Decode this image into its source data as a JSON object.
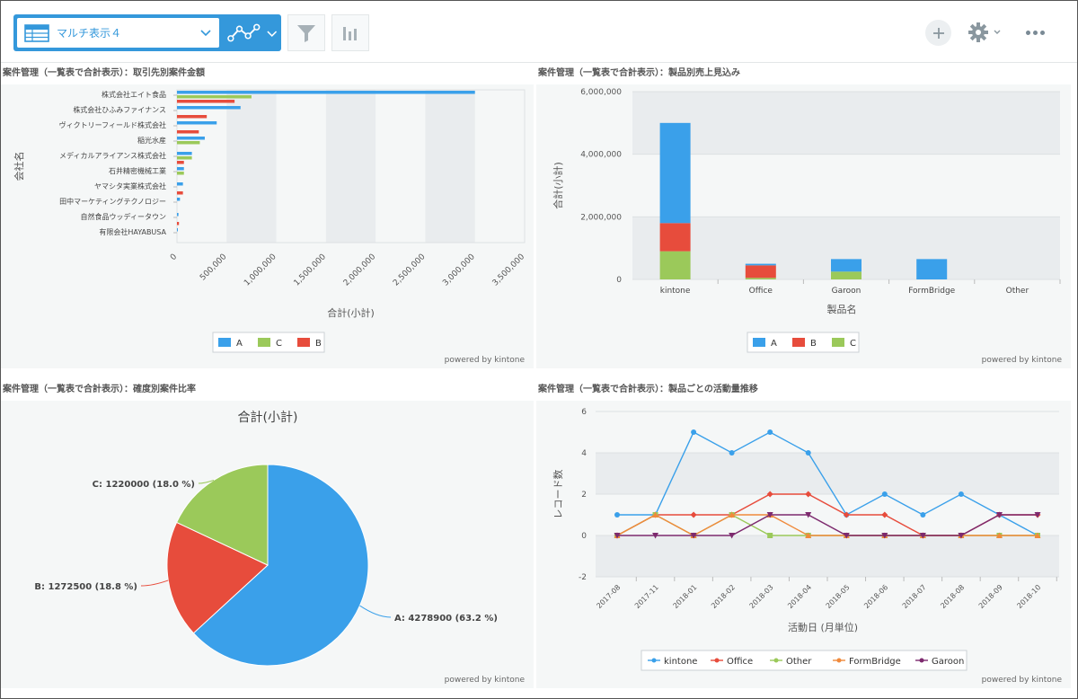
{
  "toolbar": {
    "view_select_label": "マルチ表示４",
    "icons": [
      "table-icon",
      "chevron-down-icon",
      "line-graph-icon",
      "chevron-down-icon",
      "filter-icon",
      "bar-chart-icon",
      "plus-icon",
      "gear-icon",
      "more-icon"
    ]
  },
  "colors": {
    "accent": "#3498db",
    "A": "#3aa0ea",
    "B": "#e74c3c",
    "C": "#9bc95a",
    "orange": "#f08a3c",
    "purple": "#7d2a6e"
  },
  "powered_by": "powered by kintone",
  "chart_data": [
    {
      "type": "bar",
      "orientation": "horizontal",
      "title": "案件管理（一覧表で合計表示）：取引先別案件金額",
      "xlabel": "合計(小計)",
      "ylabel": "会社名",
      "xlim": [
        0,
        3500000
      ],
      "xticks": [
        "0",
        "500,000",
        "1,000,000",
        "1,500,000",
        "2,000,000",
        "2,500,000",
        "3,000,000",
        "3,500,000"
      ],
      "categories": [
        "株式会社エイト食品",
        "株式会社ひふみファイナンス",
        "ヴィクトリーフィールド株式会社",
        "稲光水産",
        "メディカルアライアンス株式会社",
        "石井精密機械工業",
        "ヤマシタ実業株式会社",
        "田中マーケティングテクノロジー",
        "自然食品ウッディータウン",
        "有限会社HAYABUSA"
      ],
      "series": [
        {
          "name": "A",
          "values": [
            3000000,
            640000,
            400000,
            280000,
            150000,
            70000,
            60000,
            30000,
            15000,
            5000
          ]
        },
        {
          "name": "C",
          "values": [
            750000,
            0,
            0,
            230000,
            150000,
            70000,
            0,
            0,
            0,
            0
          ]
        },
        {
          "name": "B",
          "values": [
            580000,
            300000,
            220000,
            0,
            70000,
            0,
            60000,
            0,
            20000,
            0
          ]
        }
      ],
      "legend": [
        "A",
        "C",
        "B"
      ]
    },
    {
      "type": "bar",
      "stacked": true,
      "title": "案件管理（一覧表で合計表示）：製品別売上見込み",
      "xlabel": "製品名",
      "ylabel": "合計(小計)",
      "ylim": [
        0,
        6000000
      ],
      "yticks": [
        "0",
        "2,000,000",
        "4,000,000",
        "6,000,000"
      ],
      "categories": [
        "kintone",
        "Office",
        "Garoon",
        "FormBridge",
        "Other"
      ],
      "series": [
        {
          "name": "C",
          "values": [
            900000,
            50000,
            250000,
            0,
            0
          ]
        },
        {
          "name": "B",
          "values": [
            900000,
            400000,
            0,
            0,
            0
          ]
        },
        {
          "name": "A",
          "values": [
            3200000,
            50000,
            400000,
            650000,
            0
          ]
        }
      ],
      "legend": [
        "A",
        "B",
        "C"
      ]
    },
    {
      "type": "pie",
      "title": "案件管理（一覧表で合計表示）：確度別案件比率",
      "subtitle": "合計(小計)",
      "slices": [
        {
          "name": "A",
          "value": 4278900,
          "percent": 63.2,
          "label": "A: 4278900 (63.2 %)"
        },
        {
          "name": "B",
          "value": 1272500,
          "percent": 18.8,
          "label": "B: 1272500 (18.8 %)"
        },
        {
          "name": "C",
          "value": 1220000,
          "percent": 18.0,
          "label": "C: 1220000 (18.0 %)"
        }
      ]
    },
    {
      "type": "line",
      "title": "案件管理（一覧表で合計表示）：製品ごとの活動量推移",
      "xlabel": "活動日 (月単位)",
      "ylabel": "レコード数",
      "ylim": [
        -2,
        6
      ],
      "yticks": [
        "-2",
        "0",
        "2",
        "4",
        "6"
      ],
      "x": [
        "2017-08",
        "2017-11",
        "2018-01",
        "2018-02",
        "2018-03",
        "2018-04",
        "2018-05",
        "2018-06",
        "2018-07",
        "2018-08",
        "2018-09",
        "2018-10"
      ],
      "series": [
        {
          "name": "kintone",
          "values": [
            1,
            1,
            5,
            4,
            5,
            4,
            1,
            2,
            1,
            2,
            1,
            0
          ]
        },
        {
          "name": "Office",
          "values": [
            0,
            1,
            1,
            1,
            2,
            2,
            1,
            1,
            0,
            0,
            1,
            1
          ]
        },
        {
          "name": "Other",
          "values": [
            0,
            1,
            0,
            1,
            0,
            0,
            0,
            0,
            0,
            0,
            0,
            0
          ]
        },
        {
          "name": "FormBridge",
          "values": [
            0,
            1,
            0,
            1,
            1,
            0,
            0,
            0,
            0,
            0,
            0,
            0
          ]
        },
        {
          "name": "Garoon",
          "values": [
            0,
            0,
            0,
            0,
            1,
            1,
            0,
            0,
            0,
            0,
            1,
            1
          ]
        }
      ],
      "legend": [
        "kintone",
        "Office",
        "Other",
        "FormBridge",
        "Garoon"
      ]
    }
  ]
}
